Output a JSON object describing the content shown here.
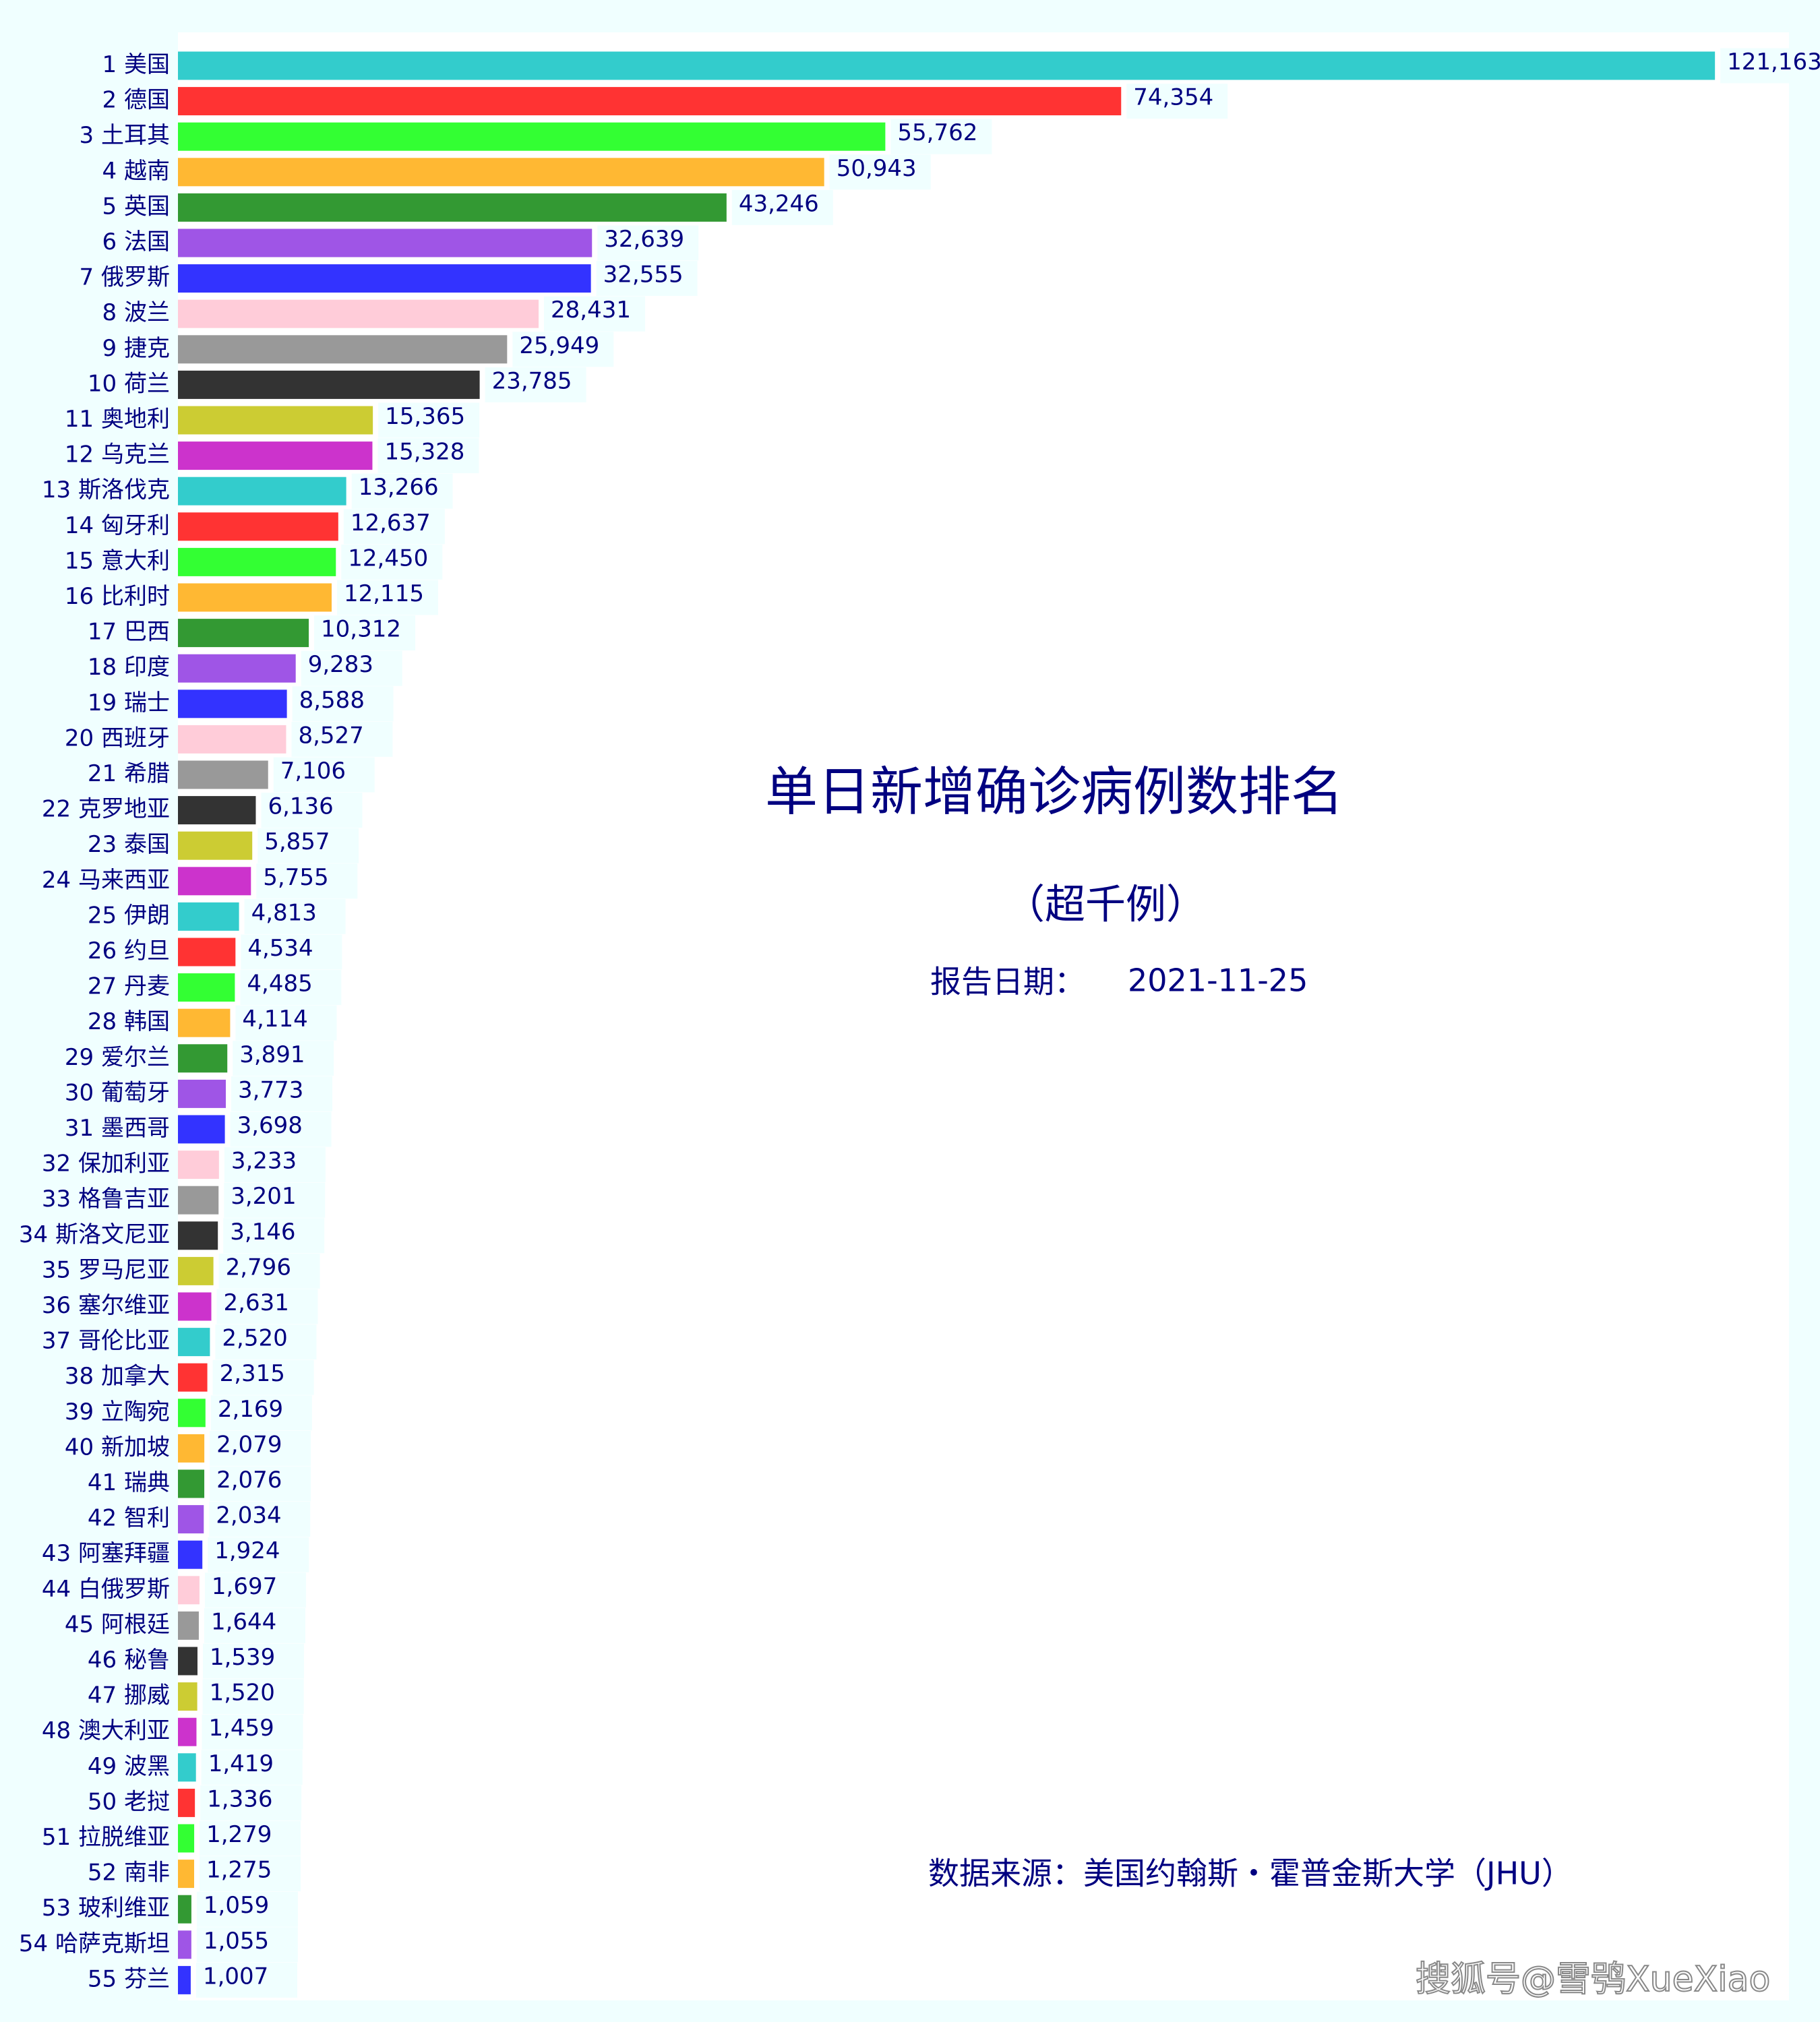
{
  "chart_data": {
    "type": "barh",
    "title": "单日新增确诊病例数排名",
    "subtitle": "（超千例）",
    "date_label": "报告日期：",
    "date": "2021-11-25",
    "source": "数据来源：美国约翰斯・霍普金斯大学（JHU）",
    "watermark": "搜狐号@雪鸮XueXiao",
    "categories": [
      "1 美国",
      "2 德国",
      "3 土耳其",
      "4 越南",
      "5 英国",
      "6 法国",
      "7 俄罗斯",
      "8 波兰",
      "9 捷克",
      "10 荷兰",
      "11 奥地利",
      "12 乌克兰",
      "13 斯洛伐克",
      "14 匈牙利",
      "15 意大利",
      "16 比利时",
      "17 巴西",
      "18 印度",
      "19 瑞士",
      "20 西班牙",
      "21 希腊",
      "22 克罗地亚",
      "23 泰国",
      "24 马来西亚",
      "25 伊朗",
      "26 约旦",
      "27 丹麦",
      "28 韩国",
      "29 爱尔兰",
      "30 葡萄牙",
      "31 墨西哥",
      "32 保加利亚",
      "33 格鲁吉亚",
      "34 斯洛文尼亚",
      "35 罗马尼亚",
      "36 塞尔维亚",
      "37 哥伦比亚",
      "38 加拿大",
      "39 立陶宛",
      "40 新加坡",
      "41 瑞典",
      "42 智利",
      "43 阿塞拜疆",
      "44 白俄罗斯",
      "45 阿根廷",
      "46 秘鲁",
      "47 挪威",
      "48 澳大利亚",
      "49 波黑",
      "50 老挝",
      "51 拉脱维亚",
      "52 南非",
      "53 玻利维亚",
      "54 哈萨克斯坦",
      "55 芬兰"
    ],
    "values": [
      121163,
      74354,
      55762,
      50943,
      43246,
      32639,
      32555,
      28431,
      25949,
      23785,
      15365,
      15328,
      13266,
      12637,
      12450,
      12115,
      10312,
      9283,
      8588,
      8527,
      7106,
      6136,
      5857,
      5755,
      4813,
      4534,
      4485,
      4114,
      3891,
      3773,
      3698,
      3233,
      3201,
      3146,
      2796,
      2631,
      2520,
      2315,
      2169,
      2079,
      2076,
      2034,
      1924,
      1697,
      1644,
      1539,
      1520,
      1459,
      1419,
      1336,
      1279,
      1275,
      1059,
      1055,
      1007
    ],
    "value_labels": [
      "121,163",
      "74,354",
      "55,762",
      "50,943",
      "43,246",
      "32,639",
      "32,555",
      "28,431",
      "25,949",
      "23,785",
      "15,365",
      "15,328",
      "13,266",
      "12,637",
      "12,450",
      "12,115",
      "10,312",
      "9,283",
      "8,588",
      "8,527",
      "7,106",
      "6,136",
      "5,857",
      "5,755",
      "4,813",
      "4,534",
      "4,485",
      "4,114",
      "3,891",
      "3,773",
      "3,698",
      "3,233",
      "3,201",
      "3,146",
      "2,796",
      "2,631",
      "2,520",
      "2,315",
      "2,169",
      "2,079",
      "2,076",
      "2,034",
      "1,924",
      "1,697",
      "1,644",
      "1,539",
      "1,520",
      "1,459",
      "1,419",
      "1,336",
      "1,279",
      "1,275",
      "1,059",
      "1,055",
      "1,007"
    ],
    "colors": [
      "#33cccc",
      "#ff3333",
      "#33ff33",
      "#ffb833",
      "#339933",
      "#9f55e6",
      "#3333ff",
      "#ffccd9",
      "#999999",
      "#333333",
      "#cccc33",
      "#cc33cc"
    ],
    "xlim": [
      0,
      127000
    ]
  }
}
